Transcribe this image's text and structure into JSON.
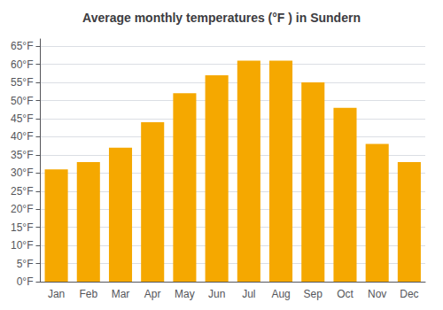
{
  "chart_data": {
    "type": "bar",
    "title": "Average monthly temperatures (°F ) in Sundern",
    "categories": [
      "Jan",
      "Feb",
      "Mar",
      "Apr",
      "May",
      "Jun",
      "Jul",
      "Aug",
      "Sep",
      "Oct",
      "Nov",
      "Dec"
    ],
    "values": [
      31,
      33,
      37,
      44,
      52,
      57,
      61,
      61,
      55,
      48,
      38,
      33
    ],
    "color": "#F5A800",
    "ylim": [
      0,
      67
    ],
    "yticks": [
      {
        "value": 0,
        "label": "0°F"
      },
      {
        "value": 5,
        "label": "5°F"
      },
      {
        "value": 10,
        "label": "10°F"
      },
      {
        "value": 15,
        "label": "15°F"
      },
      {
        "value": 20,
        "label": "20°F"
      },
      {
        "value": 25,
        "label": "25°F"
      },
      {
        "value": 30,
        "label": "30°F"
      },
      {
        "value": 35,
        "label": "35°F"
      },
      {
        "value": 40,
        "label": "40°F"
      },
      {
        "value": 45,
        "label": "45°F"
      },
      {
        "value": 50,
        "label": "50°F"
      },
      {
        "value": 55,
        "label": "55°F"
      },
      {
        "value": 60,
        "label": "60°F"
      },
      {
        "value": 65,
        "label": "65°F"
      }
    ],
    "grid": true
  }
}
